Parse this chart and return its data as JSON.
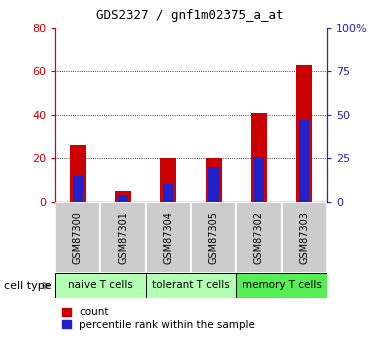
{
  "title": "GDS2327 / gnf1m02375_a_at",
  "samples": [
    "GSM87300",
    "GSM87301",
    "GSM87304",
    "GSM87305",
    "GSM87302",
    "GSM87303"
  ],
  "count_values": [
    26,
    5,
    20,
    20,
    41,
    63
  ],
  "percentile_values": [
    15,
    4,
    10,
    20,
    26,
    47
  ],
  "cell_types": [
    {
      "label": "naive T cells",
      "color": "#b3ffb3",
      "start": 0,
      "end": 2
    },
    {
      "label": "tolerant T cells",
      "color": "#b3ffb3",
      "start": 2,
      "end": 4
    },
    {
      "label": "memory T cells",
      "color": "#55ee55",
      "start": 4,
      "end": 6
    }
  ],
  "bar_color_count": "#cc0000",
  "bar_color_pct": "#2222cc",
  "left_axis_color": "#cc0000",
  "right_axis_color": "#2222cc",
  "ylim_left": [
    0,
    80
  ],
  "ylim_right": [
    0,
    100
  ],
  "left_ticks": [
    0,
    20,
    40,
    60,
    80
  ],
  "right_ticks": [
    0,
    25,
    50,
    75,
    100
  ],
  "right_tick_labels": [
    "0",
    "25",
    "50",
    "75",
    "100%"
  ],
  "grid_lines": [
    20,
    40,
    60
  ],
  "background_color": "#ffffff",
  "bar_width": 0.35,
  "sample_bg_color": "#cccccc",
  "cell_type_label": "cell type"
}
